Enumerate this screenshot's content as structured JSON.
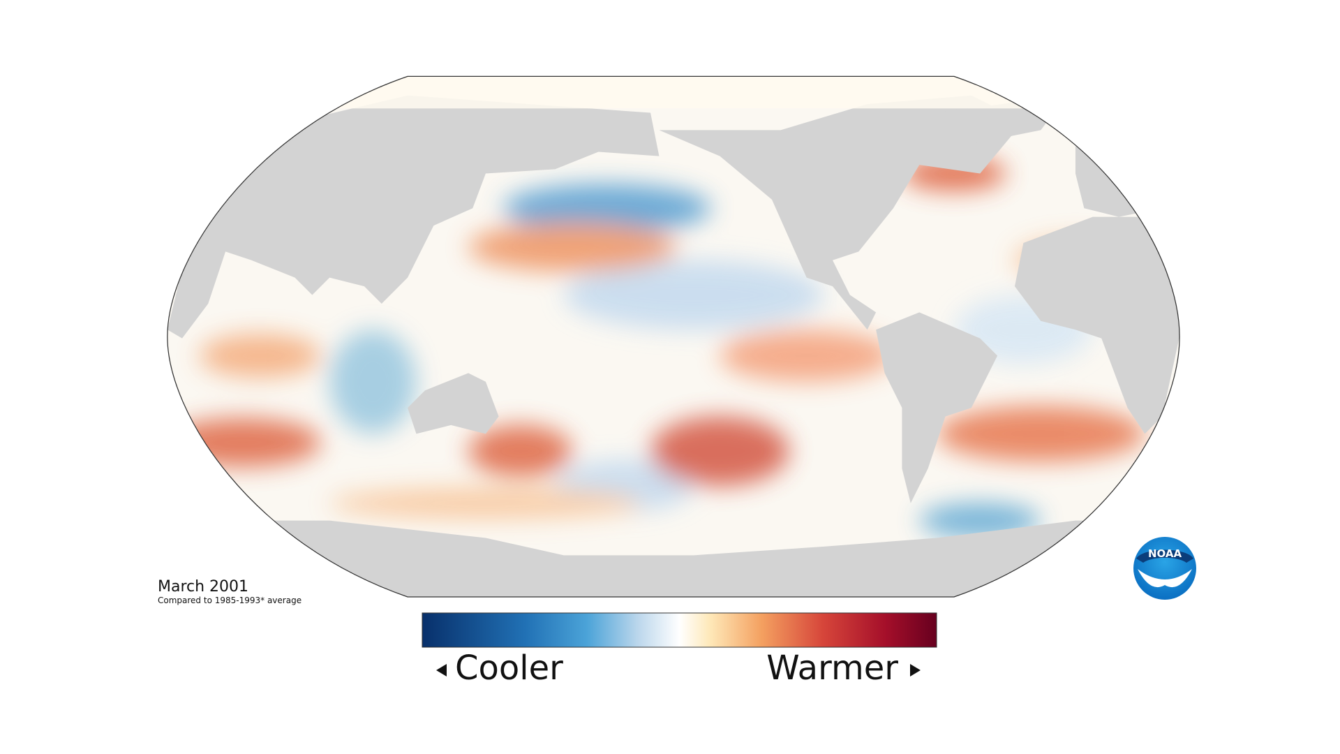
{
  "title": "March 2001",
  "subtitle": "Compared to 1985-1993* average",
  "legend": {
    "low": "Cooler",
    "high": "Warmer"
  },
  "logo": "NOAA"
}
